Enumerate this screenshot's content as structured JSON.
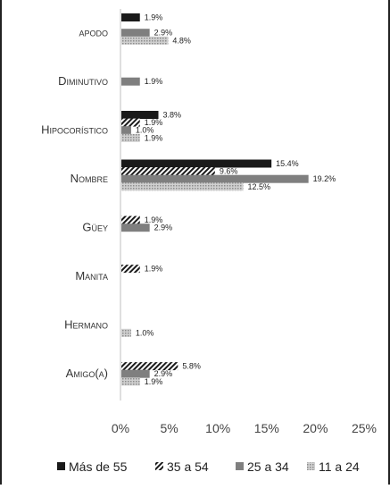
{
  "chart_data": {
    "type": "bar",
    "orientation": "horizontal",
    "categories": [
      "apodo",
      "Diminutivo",
      "Hipocorístico",
      "Nombre",
      "Güey",
      "Manita",
      "Hermano",
      "Amigo(a)"
    ],
    "series": [
      {
        "name": "Más de 55",
        "color": "#1a1a1a",
        "pattern": "solid",
        "values": [
          1.9,
          null,
          3.8,
          15.4,
          null,
          null,
          null,
          null
        ],
        "labels": [
          "1.9%",
          "",
          "3.8%",
          "15.4%",
          "",
          "",
          "",
          ""
        ]
      },
      {
        "name": "35 a 54",
        "color": "#1a1a1a",
        "pattern": "diagonal-hatch",
        "values": [
          null,
          null,
          1.9,
          9.6,
          1.9,
          1.9,
          null,
          5.8
        ],
        "labels": [
          "",
          "",
          "1.9%",
          "9.6%",
          "1.9%",
          "1.9%",
          "",
          "5.8%"
        ]
      },
      {
        "name": "25 a 34",
        "color": "#7f7f7f",
        "pattern": "solid",
        "values": [
          2.9,
          1.9,
          1.0,
          19.2,
          2.9,
          null,
          null,
          2.9
        ],
        "labels": [
          "2.9%",
          "1.9%",
          "1.0%",
          "19.2%",
          "2.9%",
          "",
          "",
          "2.9%"
        ]
      },
      {
        "name": "11 a 24",
        "color": "#a6a6a6",
        "pattern": "dotted",
        "values": [
          4.8,
          null,
          1.9,
          12.5,
          null,
          null,
          1.0,
          1.9
        ],
        "labels": [
          "4.8%",
          "",
          "1.9%",
          "12.5%",
          "",
          "",
          "1.0%",
          "1.9%"
        ]
      }
    ],
    "xaxis": {
      "ticks": [
        0,
        5,
        10,
        15,
        20,
        25
      ],
      "tick_labels": [
        "0%",
        "5%",
        "10%",
        "15%",
        "20%",
        "25%"
      ],
      "xlim": [
        0,
        25
      ]
    },
    "grid": false,
    "legend": "bottom",
    "title": "",
    "xlabel": "",
    "ylabel": ""
  }
}
